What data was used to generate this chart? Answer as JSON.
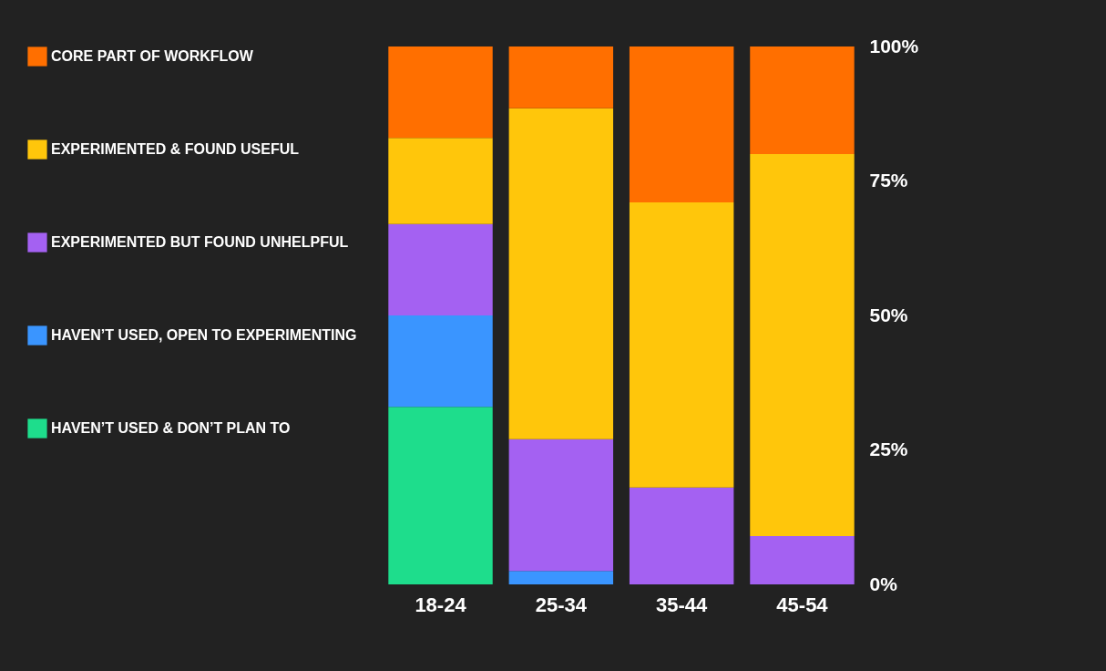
{
  "chart_data": {
    "type": "bar",
    "stacked": true,
    "categories": [
      "18-24",
      "25-34",
      "35-44",
      "45-54"
    ],
    "series": [
      {
        "name": "HAVEN’T USED & DON’T PLAN TO",
        "color": "#1edd8c",
        "values": [
          33,
          0,
          0,
          0
        ]
      },
      {
        "name": "HAVEN’T USED, OPEN TO EXPERIMENTING",
        "color": "#3a95ff",
        "values": [
          17,
          2.5,
          0,
          0
        ]
      },
      {
        "name": "EXPERIMENTED BUT FOUND UNHELPFUL",
        "color": "#a461f2",
        "values": [
          17,
          24.5,
          18,
          9
        ]
      },
      {
        "name": "EXPERIMENTED & FOUND USEFUL",
        "color": "#ffc60b",
        "values": [
          16,
          61.5,
          53,
          71
        ]
      },
      {
        "name": "CORE PART OF WORKFLOW",
        "color": "#ff6f00",
        "values": [
          17,
          11.5,
          29,
          20
        ]
      }
    ],
    "ylim": [
      0,
      100
    ],
    "yticks": [
      {
        "value": 0,
        "label": "0%"
      },
      {
        "value": 25,
        "label": "25%"
      },
      {
        "value": 50,
        "label": "50%"
      },
      {
        "value": 75,
        "label": "75%"
      },
      {
        "value": 100,
        "label": "100%"
      }
    ],
    "grid": false,
    "legend": "left"
  }
}
